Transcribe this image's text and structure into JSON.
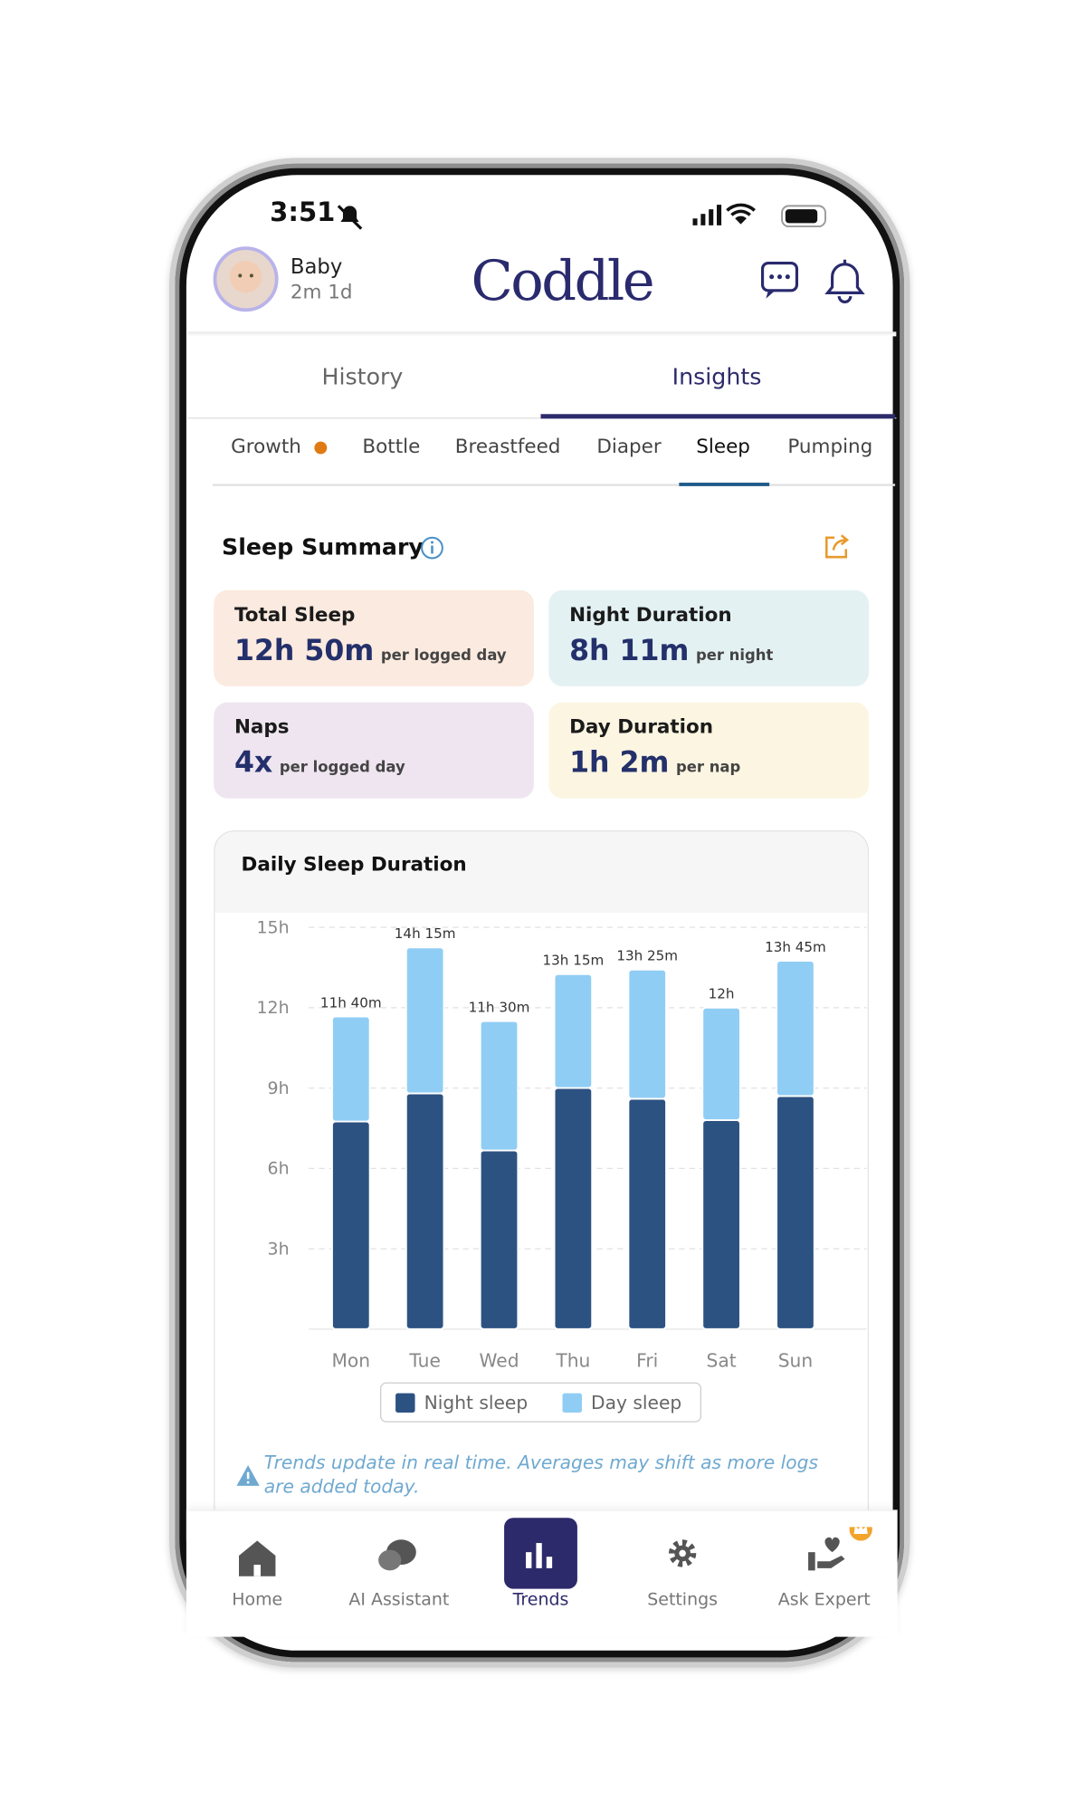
{
  "status_bar": {
    "time": "3:51"
  },
  "header": {
    "profile_name": "Baby",
    "profile_age": "2m 1d",
    "logo": "Coddle"
  },
  "tabs": [
    "History",
    "Insights"
  ],
  "subtabs": [
    "Growth",
    "Bottle",
    "Breastfeed",
    "Diaper",
    "Sleep",
    "Pumping"
  ],
  "summary": {
    "title": "Sleep Summary",
    "cards": [
      {
        "label": "Total Sleep",
        "value": "12h 50m",
        "unit": "per logged day"
      },
      {
        "label": "Night Duration",
        "value": "8h 11m",
        "unit": "per night"
      },
      {
        "label": "Naps",
        "value": "4x",
        "unit": "per logged day"
      },
      {
        "label": "Day Duration",
        "value": "1h 2m",
        "unit": "per nap"
      }
    ]
  },
  "chart_data": {
    "type": "bar",
    "stacked": true,
    "title": "Daily Sleep Duration",
    "categories": [
      "Mon",
      "Tue",
      "Wed",
      "Thu",
      "Fri",
      "Sat",
      "Sun"
    ],
    "series": [
      {
        "name": "Night sleep",
        "color": "#2c5282",
        "values": [
          7.75,
          8.8,
          6.67,
          9,
          8.6,
          7.8,
          8.7
        ]
      },
      {
        "name": "Day sleep",
        "color": "#90cdf4",
        "values": [
          3.92,
          5.45,
          4.83,
          4.25,
          4.82,
          4.2,
          5.05
        ]
      }
    ],
    "totals": [
      11.67,
      14.25,
      11.5,
      13.25,
      13.42,
      12,
      13.75
    ],
    "total_labels": [
      "11h 40m",
      "14h 15m",
      "11h 30m",
      "13h 15m",
      "13h 25m",
      "12h",
      "13h 45m"
    ],
    "ylim": [
      0,
      15.5
    ],
    "yticks": [
      {
        "value": 3,
        "label": "3h"
      },
      {
        "value": 6,
        "label": "6h"
      },
      {
        "value": 9,
        "label": "9h"
      },
      {
        "value": 12,
        "label": "12h"
      },
      {
        "value": 15,
        "label": "15h"
      }
    ],
    "grid": true
  },
  "note": [
    "Trends update in real time. Averages may shift as more logs",
    "are added today."
  ],
  "nav": [
    "Home",
    "AI Assistant",
    "Trends",
    "Settings",
    "Ask Expert"
  ]
}
